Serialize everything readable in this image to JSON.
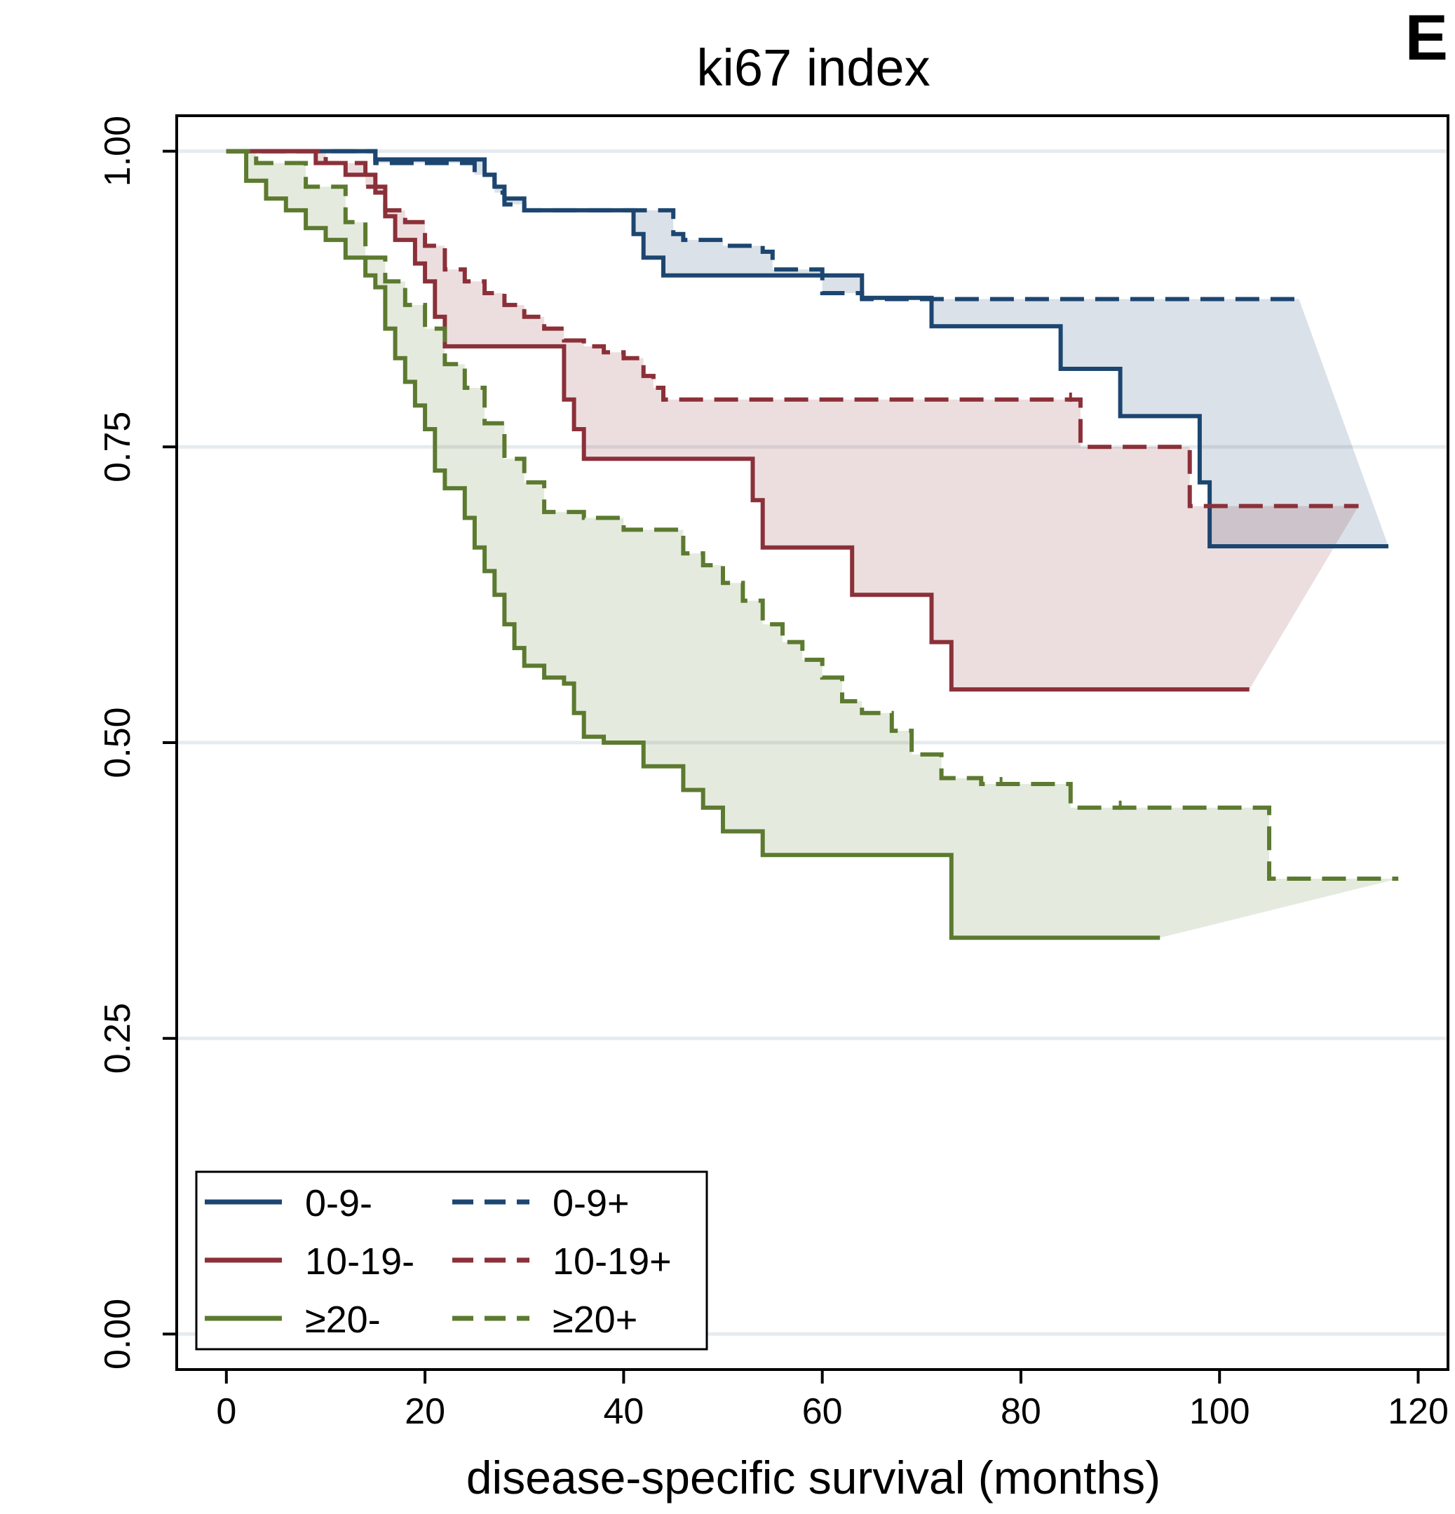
{
  "panel_label": "E",
  "chart_data": {
    "type": "line",
    "subtype": "kaplan-meier step curves with shaded difference bands",
    "title": "ki67 index",
    "xlabel": "disease-specific survival (months)",
    "ylabel": "",
    "xlim": [
      -5,
      123
    ],
    "ylim": [
      -0.03,
      1.03
    ],
    "xticks": [
      0,
      20,
      40,
      60,
      80,
      100,
      120
    ],
    "xtick_labels": [
      "0",
      "20",
      "40",
      "60",
      "80",
      "100",
      "120"
    ],
    "yticks": [
      0,
      0.25,
      0.5,
      0.75,
      1
    ],
    "ytick_labels": [
      "0.00",
      "0.25",
      "0.50",
      "0.75",
      "1.00"
    ],
    "grid": "horizontal",
    "legend_position": "bottom-left",
    "legend_columns": 2,
    "colors": {
      "blue": "#1c4670",
      "red": "#8b3039",
      "green": "#5c7a30",
      "grid": "#e6ebef"
    },
    "bands": [
      {
        "group": "0-9",
        "color": "#1c4670",
        "lower_series": "0-9-",
        "upper_series": "0-9+"
      },
      {
        "group": "10-19",
        "color": "#8b3039",
        "lower_series": "10-19-",
        "upper_series": "10-19+"
      },
      {
        "group": "≥20",
        "color": "#5c7a30",
        "lower_series": "≥20-",
        "upper_series": "≥20+"
      }
    ],
    "series": [
      {
        "name": "0-9-",
        "color": "#1c4670",
        "dash": "solid",
        "x": [
          0,
          15,
          24,
          26,
          27,
          28,
          30,
          36,
          40,
          41,
          42,
          44,
          52,
          54,
          55,
          60,
          64,
          70,
          71,
          83,
          84,
          89,
          90,
          97,
          98,
          99,
          117
        ],
        "y": [
          1,
          0.993,
          0.993,
          0.98,
          0.97,
          0.96,
          0.95,
          0.95,
          0.95,
          0.93,
          0.91,
          0.895,
          0.895,
          0.895,
          0.895,
          0.895,
          0.876,
          0.876,
          0.852,
          0.852,
          0.816,
          0.816,
          0.776,
          0.776,
          0.72,
          0.666,
          0.666
        ]
      },
      {
        "name": "0-9+",
        "color": "#1c4670",
        "dash": "dashed",
        "x": [
          0,
          10,
          15,
          25,
          27,
          28,
          30,
          40,
          44,
          45,
          46,
          50,
          54,
          55,
          60,
          64,
          70,
          108
        ],
        "y": [
          1,
          1,
          0.99,
          0.98,
          0.965,
          0.955,
          0.95,
          0.95,
          0.95,
          0.93,
          0.925,
          0.92,
          0.915,
          0.9,
          0.88,
          0.875,
          0.875,
          0.875
        ]
      },
      {
        "name": "10-19-",
        "color": "#8b3039",
        "dash": "solid",
        "x": [
          0,
          4,
          9,
          12,
          15,
          16,
          17,
          19,
          20,
          21,
          22,
          23,
          25,
          28,
          30,
          32,
          34,
          35,
          36,
          38,
          41,
          44,
          52,
          53,
          54,
          55,
          60,
          63,
          64,
          71,
          72,
          73,
          103
        ],
        "y": [
          1,
          1,
          0.99,
          0.98,
          0.965,
          0.945,
          0.925,
          0.905,
          0.89,
          0.86,
          0.835,
          0.835,
          0.835,
          0.835,
          0.835,
          0.835,
          0.79,
          0.765,
          0.74,
          0.74,
          0.74,
          0.74,
          0.74,
          0.705,
          0.665,
          0.665,
          0.665,
          0.625,
          0.625,
          0.585,
          0.585,
          0.545,
          0.545
        ]
      },
      {
        "name": "10-19+",
        "color": "#8b3039",
        "dash": "dashed",
        "x": [
          0,
          5,
          10,
          14,
          16,
          18,
          20,
          22,
          24,
          26,
          28,
          30,
          32,
          34,
          36,
          38,
          40,
          42,
          43,
          44,
          46,
          50,
          54,
          60,
          70,
          80,
          85,
          86,
          96,
          97,
          114
        ],
        "y": [
          1,
          1,
          0.99,
          0.97,
          0.95,
          0.94,
          0.92,
          0.9,
          0.89,
          0.88,
          0.87,
          0.86,
          0.85,
          0.84,
          0.835,
          0.83,
          0.825,
          0.81,
          0.8,
          0.79,
          0.79,
          0.79,
          0.79,
          0.79,
          0.79,
          0.79,
          0.79,
          0.75,
          0.75,
          0.7,
          0.7
        ],
        "marks": [
          [
            40,
            0.825
          ],
          [
            44,
            0.79
          ],
          [
            85,
            0.79
          ]
        ]
      },
      {
        "name": "≥20-",
        "color": "#5c7a30",
        "dash": "solid",
        "x": [
          0,
          2,
          4,
          6,
          8,
          10,
          12,
          14,
          15,
          16,
          17,
          18,
          19,
          20,
          21,
          22,
          24,
          25,
          26,
          27,
          28,
          29,
          30,
          32,
          34,
          35,
          36,
          38,
          42,
          45,
          46,
          48,
          50,
          52,
          54,
          55,
          60,
          70,
          73,
          94
        ],
        "y": [
          1,
          0.975,
          0.96,
          0.95,
          0.935,
          0.925,
          0.91,
          0.895,
          0.885,
          0.85,
          0.825,
          0.805,
          0.785,
          0.765,
          0.73,
          0.715,
          0.69,
          0.665,
          0.645,
          0.625,
          0.6,
          0.58,
          0.565,
          0.555,
          0.55,
          0.525,
          0.505,
          0.5,
          0.48,
          0.48,
          0.46,
          0.445,
          0.425,
          0.425,
          0.405,
          0.405,
          0.405,
          0.405,
          0.335,
          0.335
        ]
      },
      {
        "name": "≥20+",
        "color": "#5c7a30",
        "dash": "dashed",
        "x": [
          0,
          3,
          8,
          12,
          14,
          16,
          18,
          20,
          22,
          24,
          26,
          28,
          30,
          32,
          34,
          36,
          40,
          45,
          46,
          48,
          50,
          52,
          54,
          56,
          58,
          60,
          62,
          64,
          67,
          69,
          72,
          74,
          76,
          84,
          85,
          90,
          104,
          105,
          118
        ],
        "y": [
          1,
          0.99,
          0.97,
          0.94,
          0.91,
          0.89,
          0.87,
          0.85,
          0.82,
          0.8,
          0.77,
          0.74,
          0.72,
          0.695,
          0.695,
          0.69,
          0.68,
          0.68,
          0.66,
          0.65,
          0.635,
          0.62,
          0.6,
          0.585,
          0.57,
          0.555,
          0.535,
          0.525,
          0.51,
          0.49,
          0.47,
          0.47,
          0.465,
          0.465,
          0.445,
          0.445,
          0.445,
          0.385,
          0.385
        ],
        "marks": [
          [
            78,
            0.465
          ],
          [
            90,
            0.445
          ]
        ]
      }
    ],
    "legend": [
      {
        "label": "0-9-",
        "color": "#1c4670",
        "dash": "solid"
      },
      {
        "label": "0-9+",
        "color": "#1c4670",
        "dash": "dashed"
      },
      {
        "label": "10-19-",
        "color": "#8b3039",
        "dash": "solid"
      },
      {
        "label": "10-19+",
        "color": "#8b3039",
        "dash": "dashed"
      },
      {
        "label": "≥20-",
        "color": "#5c7a30",
        "dash": "solid"
      },
      {
        "label": "≥20+",
        "color": "#5c7a30",
        "dash": "dashed"
      }
    ]
  }
}
